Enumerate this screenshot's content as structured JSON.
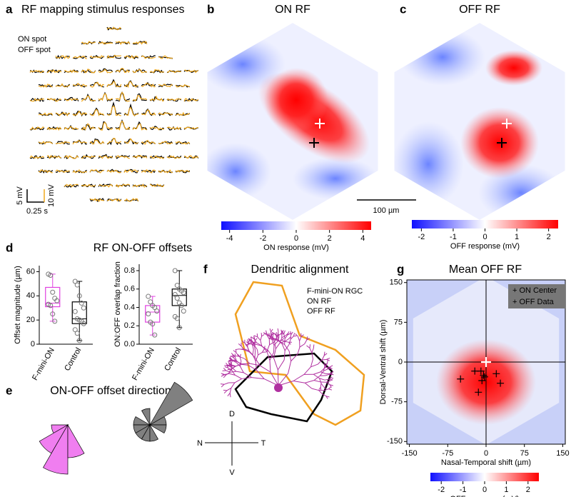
{
  "chart_data": [
    {
      "type": "traces",
      "panel": "a",
      "title": "RF mapping stimulus responses",
      "series": [
        {
          "name": "ON spot",
          "color": "#f0a81c"
        },
        {
          "name": "OFF spot",
          "color": "#000000"
        }
      ],
      "scalebar": {
        "y_label": "5 mV",
        "y2_label": "10 mV",
        "x_label": "0.25 s"
      }
    },
    {
      "type": "heatmap",
      "panel": "b",
      "title": "ON RF",
      "colorbar_label": "ON response (mV)",
      "clim": [
        -4.5,
        4.5
      ],
      "cticks": [
        -4,
        -2,
        0,
        2,
        4
      ],
      "scalebar_label": "100 µm"
    },
    {
      "type": "heatmap",
      "panel": "c",
      "title": "OFF RF",
      "colorbar_label": "OFF response (mV)",
      "clim": [
        -2.3,
        2.3
      ],
      "cticks": [
        -2,
        -1,
        0,
        1,
        2
      ]
    },
    {
      "type": "box",
      "panel": "d",
      "title": "RF ON-OFF offsets",
      "ylabel": "Offset magnitude (µm)",
      "ylim": [
        0,
        65
      ],
      "yticks": [
        0,
        20,
        40,
        60
      ],
      "categories": [
        "F-mini-ON",
        "Control"
      ],
      "boxes": [
        {
          "color": "#e040e0",
          "min": 19,
          "q1": 31,
          "median": 34,
          "q3": 47,
          "max": 58,
          "points": [
            58,
            57,
            43,
            38,
            36,
            33,
            32,
            25,
            19
          ]
        },
        {
          "color": "#000000",
          "min": 3,
          "q1": 17,
          "median": 21,
          "q3": 35,
          "max": 52,
          "points": [
            52,
            49,
            40,
            34,
            30,
            27,
            21,
            20,
            19,
            17,
            12,
            9,
            3
          ]
        }
      ]
    },
    {
      "type": "box",
      "ylabel": "ON:OFF overlap fraction",
      "ylim": [
        0,
        0.87
      ],
      "yticks": [
        {
          "value": 0,
          "label": "0.0"
        },
        0.2,
        0.4,
        0.6,
        0.8
      ],
      "categories": [
        "F-mini-ON",
        "Control"
      ],
      "boxes": [
        {
          "color": "#e040e0",
          "min": 0.1,
          "q1": 0.24,
          "median": 0.35,
          "q3": 0.42,
          "max": 0.52,
          "points": [
            0.52,
            0.46,
            0.42,
            0.4,
            0.36,
            0.33,
            0.24,
            0.22,
            0.1
          ]
        },
        {
          "color": "#000000",
          "min": 0.18,
          "q1": 0.42,
          "median": 0.53,
          "q3": 0.6,
          "max": 0.8,
          "points": [
            0.8,
            0.64,
            0.6,
            0.58,
            0.56,
            0.54,
            0.5,
            0.45,
            0.42,
            0.36,
            0.3,
            0.28,
            0.18
          ]
        }
      ]
    },
    {
      "type": "rose",
      "panel": "e",
      "title": "ON-OFF offset direction",
      "series": [
        {
          "color": "#f07ef0",
          "counts": [
            0,
            0,
            0,
            0,
            0,
            0,
            1,
            2,
            3,
            2,
            0,
            0
          ]
        },
        {
          "color": "#808080",
          "counts": [
            1,
            3,
            0,
            1,
            0,
            1,
            1,
            1,
            1,
            1,
            0,
            1
          ]
        }
      ]
    },
    {
      "type": "diagram",
      "panel": "f",
      "title": "Dendritic alignment",
      "series": [
        {
          "name": "F-mini-ON RGC",
          "color": "#b030a0"
        },
        {
          "name": "ON RF",
          "color": "#f0a020"
        },
        {
          "name": "OFF RF",
          "color": "#000000"
        }
      ],
      "compass": {
        "up": "D",
        "down": "V",
        "left": "N",
        "right": "T"
      }
    },
    {
      "type": "heatmap",
      "panel": "g",
      "title": "Mean OFF RF",
      "xlabel": "Nasal-Temporal shift (µm)",
      "ylabel": "Dorsal-Ventral shift (µm)",
      "xlim": [
        -155,
        155
      ],
      "ylim": [
        -155,
        155
      ],
      "xticks": [
        -150,
        -75,
        0,
        75,
        150
      ],
      "yticks": [
        -150,
        -75,
        0,
        75,
        150
      ],
      "series": [
        {
          "name": "+ ON Center",
          "color": "#ffffff",
          "x": [
            0
          ],
          "y": [
            0
          ]
        },
        {
          "name": "+ OFF Data",
          "color": "#000000",
          "x": [
            -50,
            -22,
            -10,
            -5,
            -8,
            -15,
            20,
            28,
            -3
          ],
          "y": [
            -32,
            -17,
            -17,
            -25,
            -35,
            -57,
            -22,
            -40,
            -28
          ]
        }
      ],
      "colorbar_label": "OFF response (mV)",
      "clim": [
        -2.5,
        2.5
      ],
      "cticks": [
        -2,
        -1,
        0,
        1,
        2
      ]
    }
  ]
}
